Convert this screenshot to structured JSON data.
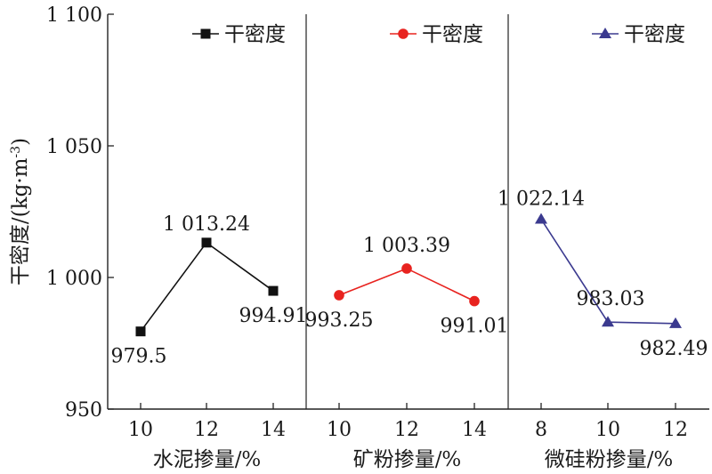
{
  "chart_data": {
    "type": "line",
    "ylabel_main": "干密度/(kg·m",
    "ylabel_sup": "-3",
    "ylabel_close": ")",
    "ylim": [
      950,
      1100
    ],
    "yticks": [
      950,
      1000,
      1050,
      1100
    ],
    "ytick_labels": [
      "950",
      "1 000",
      "1 050",
      "1 100"
    ],
    "panels": [
      {
        "xlabel": "水泥掺量/%",
        "x": [
          10,
          12,
          14
        ],
        "x_labels": [
          "10",
          "12",
          "14"
        ],
        "series": [
          {
            "name": "干密度",
            "values": [
              979.5,
              1013.24,
              994.91
            ]
          }
        ],
        "value_labels": [
          "979.5",
          "1 013.24",
          "994.91"
        ],
        "color": "#111111",
        "marker": "square"
      },
      {
        "xlabel": "矿粉掺量/%",
        "x": [
          10,
          12,
          14
        ],
        "x_labels": [
          "10",
          "12",
          "14"
        ],
        "series": [
          {
            "name": "干密度",
            "values": [
              993.25,
              1003.39,
              991.01
            ]
          }
        ],
        "value_labels": [
          "993.25",
          "1 003.39",
          "991.01"
        ],
        "color": "#e8231f",
        "marker": "circle"
      },
      {
        "xlabel": "微硅粉掺量/%",
        "x": [
          8,
          10,
          12
        ],
        "x_labels": [
          "8",
          "10",
          "12"
        ],
        "series": [
          {
            "name": "干密度",
            "values": [
              1022.14,
              983.03,
              982.49
            ]
          }
        ],
        "value_labels": [
          "1 022.14",
          "983.03",
          "982.49"
        ],
        "color": "#3b3a8f",
        "marker": "triangle"
      }
    ],
    "grid": false,
    "legend_position": "top"
  }
}
